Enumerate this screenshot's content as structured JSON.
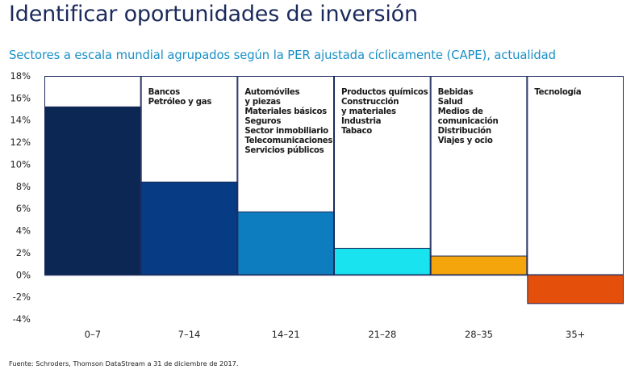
{
  "title": "Identificar oportunidades de inversión",
  "subtitle": "Sectores a escala mundial agrupados según la PER ajustada cíclicamente (CAPE), actualidad",
  "source": "Fuente: Schroders, Thomson DataStream a 31 de diciembre de 2017.",
  "chart_data": {
    "type": "bar",
    "title": "Identificar oportunidades de inversión",
    "subtitle": "Sectores a escala mundial agrupados según la PER ajustada cíclicamente (CAPE), actualidad",
    "xlabel": "",
    "ylabel": "",
    "ylim": [
      -4,
      18
    ],
    "yticks": [
      18,
      16,
      14,
      12,
      10,
      8,
      6,
      4,
      2,
      0,
      -2,
      -4
    ],
    "ytick_labels": [
      "18%",
      "16%",
      "14%",
      "12%",
      "10%",
      "8%",
      "6%",
      "4%",
      "2%",
      "0%",
      "-2%",
      "-4%"
    ],
    "categories": [
      "0–7",
      "7–14",
      "14–21",
      "21–28",
      "28–35",
      "35+"
    ],
    "values": [
      15.2,
      8.4,
      5.7,
      2.4,
      1.7,
      -2.6
    ],
    "colors": [
      "#0c2754",
      "#073c84",
      "#0e7dbf",
      "#19e3ef",
      "#f5a50c",
      "#e54f0c"
    ],
    "annotations": [
      [],
      [
        "Bancos",
        "Petróleo y gas"
      ],
      [
        "Automóviles",
        "y piezas",
        "Materiales básicos",
        "Seguros",
        "Sector inmobiliario",
        "Telecomunicaciones",
        "Servicios públicos"
      ],
      [
        "Productos químicos",
        "Construcción",
        "y materiales",
        "Industria",
        "Tabaco"
      ],
      [
        "Bebidas",
        "Salud",
        "Medios de",
        "comunicación",
        "Distribución",
        "Viajes y ocio"
      ],
      [
        "Tecnología"
      ]
    ]
  }
}
